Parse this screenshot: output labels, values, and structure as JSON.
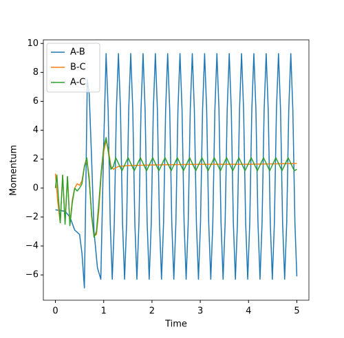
{
  "chart_data": {
    "type": "line",
    "xlabel": "Time",
    "ylabel": "Momentum",
    "xlim": [
      -0.25,
      5.25
    ],
    "ylim": [
      -7.75,
      10.25
    ],
    "xticks": [
      0,
      1,
      2,
      3,
      4,
      5
    ],
    "yticks": [
      {
        "value": -6,
        "label": "−6"
      },
      {
        "value": -4,
        "label": "−4"
      },
      {
        "value": -2,
        "label": "−2"
      },
      0,
      2,
      4,
      6,
      8,
      10
    ],
    "legend": "upper left",
    "series": [
      {
        "name": "A-B",
        "color": "#1f77b4",
        "x": [
          0,
          0.1,
          0.2,
          0.3,
          0.4,
          0.5,
          0.55,
          0.6,
          0.63,
          0.66,
          0.7,
          0.75,
          0.8,
          0.87,
          0.94,
          1.0,
          1.05,
          1.0925,
          1.135,
          1.1775,
          1.22,
          1.2625,
          1.305,
          1.3475,
          1.39,
          1.4325,
          1.475,
          1.5175,
          1.56,
          1.6025,
          1.645,
          1.6875,
          1.73,
          1.7725,
          1.815,
          1.8575,
          1.9,
          1.9425,
          1.985,
          2.0275,
          2.07,
          2.1125,
          2.155,
          2.1975,
          2.24,
          2.2825,
          2.325,
          2.3675,
          2.41,
          2.4525,
          2.495,
          2.5375,
          2.58,
          2.6225,
          2.665,
          2.7075,
          2.75,
          2.7925,
          2.835,
          2.8775,
          2.92,
          2.9625,
          3.005,
          3.0475,
          3.09,
          3.1325,
          3.175,
          3.2175,
          3.26,
          3.3025,
          3.345,
          3.3875,
          3.43,
          3.4725,
          3.515,
          3.5575,
          3.6,
          3.6425,
          3.685,
          3.7275,
          3.77,
          3.8125,
          3.855,
          3.8975,
          3.94,
          3.9825,
          4.025,
          4.0675,
          4.11,
          4.1525,
          4.195,
          4.2375,
          4.28,
          4.3225,
          4.365,
          4.4075,
          4.45,
          4.4925,
          4.535,
          4.5775,
          4.62,
          4.6625,
          4.705,
          4.7475,
          4.79,
          4.8325,
          4.875,
          4.9175,
          4.96,
          5.0
        ],
        "values": [
          -1.5,
          -1.55,
          -1.6,
          -2.0,
          -2.9,
          -3.2,
          -4.5,
          -6.9,
          0,
          7.5,
          6.5,
          2,
          -3,
          -5.5,
          -6.3,
          3,
          9.3,
          5.4,
          -2.4,
          -6.3,
          -2.4,
          5.4,
          9.3,
          5.4,
          -2.4,
          -6.3,
          -2.4,
          5.4,
          9.3,
          5.4,
          -2.4,
          -6.3,
          -2.4,
          5.4,
          9.3,
          5.4,
          -2.4,
          -6.3,
          -2.4,
          5.4,
          9.3,
          5.4,
          -2.4,
          -6.3,
          -2.4,
          5.4,
          9.3,
          5.4,
          -2.4,
          -6.3,
          -2.4,
          5.4,
          9.3,
          5.4,
          -2.4,
          -6.3,
          -2.4,
          5.4,
          9.3,
          5.4,
          -2.4,
          -6.3,
          -2.4,
          5.4,
          9.3,
          5.4,
          -2.4,
          -6.3,
          -2.4,
          5.4,
          9.3,
          5.4,
          -2.4,
          -6.3,
          -2.4,
          5.4,
          9.3,
          5.4,
          -2.4,
          -6.3,
          -2.4,
          5.4,
          9.3,
          5.4,
          -2.4,
          -6.3,
          -2.4,
          5.4,
          9.3,
          5.4,
          -2.4,
          -6.3,
          -2.4,
          5.4,
          9.3,
          5.4,
          -2.4,
          -6.3,
          -2.4,
          5.4,
          9.3,
          5.4,
          -2.4,
          -6.3,
          -2.4,
          5.4,
          9.3,
          5.4,
          -2.4,
          -6.1
        ]
      },
      {
        "name": "B-C",
        "color": "#ff7f0e",
        "x": [
          0,
          0.05,
          0.1,
          0.15,
          0.2,
          0.25,
          0.3,
          0.35,
          0.4,
          0.45,
          0.5,
          0.55,
          0.6,
          0.65,
          0.7,
          0.75,
          0.8,
          0.85,
          0.9,
          0.95,
          1.0,
          1.05,
          1.1,
          1.15,
          1.2,
          1.3,
          1.5,
          2,
          3,
          4,
          5
        ],
        "values": [
          1.0,
          -1.0,
          -2.4,
          0.9,
          -2.3,
          0.8,
          -2.5,
          -0.8,
          0.0,
          0.3,
          0.2,
          0.5,
          1.5,
          1.9,
          0.8,
          -2,
          -3.3,
          -3.2,
          -1.5,
          1.0,
          2.5,
          3.3,
          2.6,
          1.5,
          1.3,
          1.5,
          1.55,
          1.6,
          1.65,
          1.65,
          1.7
        ]
      },
      {
        "name": "A-C",
        "color": "#2ca02c",
        "x": [
          0,
          0.03,
          0.1,
          0.15,
          0.2,
          0.25,
          0.3,
          0.35,
          0.4,
          0.45,
          0.5,
          0.55,
          0.6,
          0.65,
          0.7,
          0.75,
          0.8,
          0.85,
          0.9,
          0.95,
          1.0,
          1.05,
          1.1,
          1.15,
          1.2,
          1.25,
          1.3775,
          1.505,
          1.6325,
          1.76,
          1.8875,
          2.015,
          2.1425,
          2.27,
          2.3975,
          2.525,
          2.6525,
          2.78,
          2.9075,
          3.035,
          3.1625,
          3.29,
          3.4175,
          3.545,
          3.6725,
          3.8,
          3.9275,
          4.055,
          4.1825,
          4.31,
          4.4375,
          4.565,
          4.6925,
          4.82,
          4.9475,
          5.0
        ],
        "values": [
          0.0,
          0.9,
          -2.4,
          0.9,
          -2.5,
          0.8,
          -2.6,
          -1.0,
          0.0,
          -0.2,
          0.0,
          0.3,
          1.5,
          2.1,
          0.5,
          -1.8,
          -3.4,
          -3.0,
          -1.0,
          1.2,
          2.8,
          3.5,
          2.4,
          1.3,
          1.5,
          2.1,
          1.2,
          2.1,
          1.2,
          2.1,
          1.2,
          2.1,
          1.2,
          2.1,
          1.2,
          2.1,
          1.2,
          2.1,
          1.2,
          2.1,
          1.2,
          2.1,
          1.2,
          2.1,
          1.2,
          2.1,
          1.2,
          2.1,
          1.2,
          2.1,
          1.2,
          2.1,
          1.2,
          2.1,
          1.2,
          1.3
        ]
      }
    ]
  }
}
